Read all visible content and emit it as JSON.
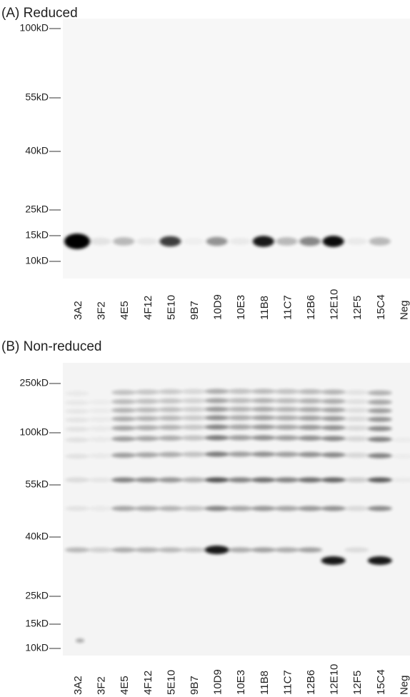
{
  "panels": [
    {
      "title": "(A) Reduced",
      "markers": [
        "100kD",
        "55kD",
        "40kD",
        "25kD",
        "15kD",
        "10kD"
      ],
      "lanes": [
        "3A2",
        "3F2",
        "4E5",
        "4F12",
        "5E10",
        "9B7",
        "10D9",
        "10E3",
        "11B8",
        "11C7",
        "12B6",
        "12E10",
        "12F5",
        "15C4",
        "Neg"
      ]
    },
    {
      "title": "(B) Non-reduced",
      "markers": [
        "250kD",
        "100kD",
        "55kD",
        "40kD",
        "25kD",
        "15kD",
        "10kD"
      ],
      "lanes": [
        "3A2",
        "3F2",
        "4E5",
        "4F12",
        "5E10",
        "9B7",
        "10D9",
        "10E3",
        "11B8",
        "11C7",
        "12B6",
        "12E10",
        "12F5",
        "15C4",
        "Neg"
      ]
    }
  ]
}
